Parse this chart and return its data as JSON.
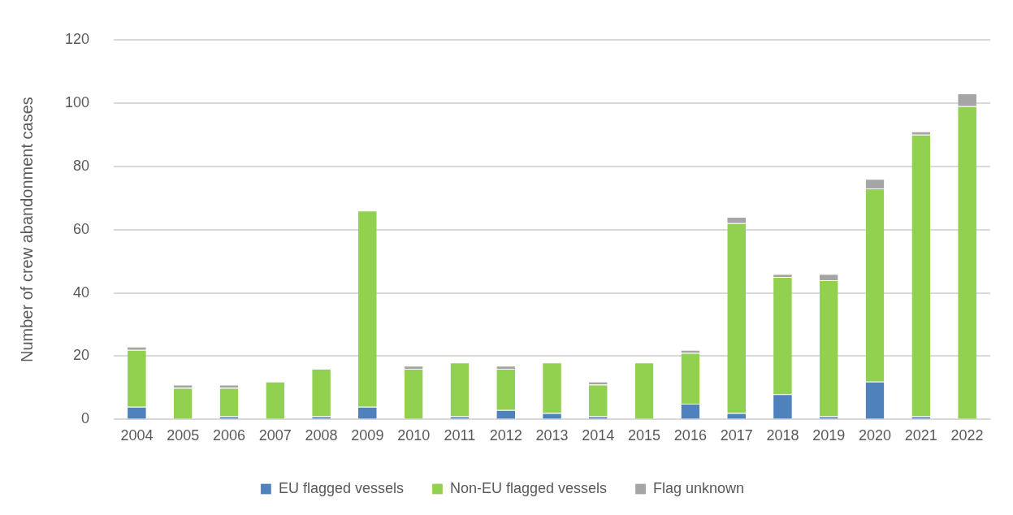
{
  "chart_data": {
    "type": "bar",
    "stacked": true,
    "ylabel": "Number of crew abandonment cases",
    "categories": [
      "2004",
      "2005",
      "2006",
      "2007",
      "2008",
      "2009",
      "2010",
      "2011",
      "2012",
      "2013",
      "2014",
      "2015",
      "2016",
      "2017",
      "2018",
      "2019",
      "2020",
      "2021",
      "2022"
    ],
    "series": [
      {
        "name": "EU flagged vessels",
        "color": "#4f81bd",
        "values": [
          4,
          0,
          1,
          0,
          1,
          4,
          0,
          1,
          3,
          2,
          1,
          0,
          5,
          2,
          8,
          1,
          12,
          1,
          0
        ]
      },
      {
        "name": "Non-EU flagged vessels",
        "color": "#92d050",
        "values": [
          18,
          10,
          9,
          12,
          15,
          62,
          16,
          17,
          13,
          16,
          10,
          18,
          16,
          60,
          37,
          43,
          61,
          89,
          99
        ]
      },
      {
        "name": "Flag unknown",
        "color": "#a5a5a5",
        "values": [
          1,
          1,
          1,
          0,
          0,
          0,
          1,
          0,
          1,
          0,
          1,
          0,
          1,
          2,
          1,
          2,
          3,
          1,
          4
        ]
      }
    ],
    "ylim": [
      0,
      120
    ],
    "yticks": [
      0,
      20,
      40,
      60,
      80,
      100,
      120
    ],
    "grid": "y",
    "legend": "bottom"
  }
}
